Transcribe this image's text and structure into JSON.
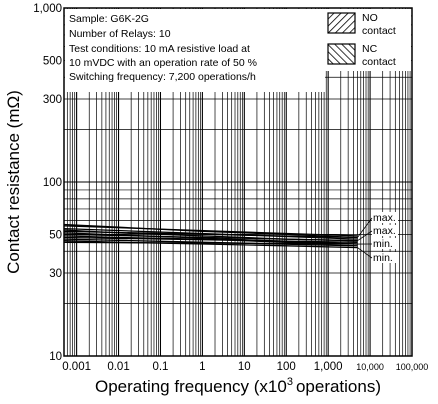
{
  "chart_data": {
    "type": "line",
    "title": "",
    "xlabel": "Operating frequency (x10",
    "xlabel_sup": "3",
    "xlabel_end": "operations)",
    "ylabel": "Contact resistance (mΩ)",
    "xscale": "log",
    "yscale": "log",
    "xlim": [
      0.0005,
      100000
    ],
    "ylim": [
      10,
      1000
    ],
    "grid": true,
    "x_ticks": [
      0.001,
      0.01,
      0.1,
      1,
      10,
      100,
      1000,
      10000,
      100000
    ],
    "x_tick_labels": [
      "0.001",
      "0.01",
      "0.1",
      "1",
      "10",
      "100",
      "1,000",
      "10,000",
      "100,000"
    ],
    "y_ticks": [
      10,
      30,
      50,
      100,
      300,
      500,
      1000
    ],
    "y_tick_labels": [
      "10",
      "30",
      "50",
      "100",
      "300",
      "500",
      "1,000"
    ],
    "info_lines": [
      "Sample: G6K-2G",
      "Number of Relays: 10",
      "Test conditions: 10 mA resistive load at",
      "10 mVDC with an operation rate of 50 %",
      "Switching frequency: 7,200 operations/h"
    ],
    "legend": [
      {
        "name_lines": [
          "NO",
          "contact"
        ],
        "hatch": "diagonal-right"
      },
      {
        "name_lines": [
          "NC",
          "contact"
        ],
        "hatch": "diagonal-left"
      }
    ],
    "legend_position": "top-right",
    "series": [
      {
        "name": "max.",
        "x": [
          0.0005,
          0.01,
          1,
          100,
          5000
        ],
        "values": [
          57,
          55,
          52,
          50,
          48
        ]
      },
      {
        "name": "max.",
        "x": [
          0.0005,
          0.01,
          1,
          100,
          5000
        ],
        "values": [
          53,
          51,
          49,
          47,
          46
        ]
      },
      {
        "name": "min.",
        "x": [
          0.0005,
          0.01,
          1,
          100,
          5000
        ],
        "values": [
          49,
          48,
          47,
          45,
          44
        ]
      },
      {
        "name": "min.",
        "x": [
          0.0005,
          0.01,
          1,
          100,
          5000
        ],
        "values": [
          46,
          45,
          44,
          43,
          42
        ]
      }
    ],
    "band_lines": [
      {
        "x": [
          0.0005,
          5000
        ],
        "values": [
          56,
          49
        ]
      },
      {
        "x": [
          0.0005,
          5000
        ],
        "values": [
          54,
          47
        ]
      },
      {
        "x": [
          0.0005,
          5000
        ],
        "values": [
          52,
          48
        ]
      },
      {
        "x": [
          0.0005,
          5000
        ],
        "values": [
          50,
          46
        ]
      },
      {
        "x": [
          0.0005,
          5000
        ],
        "values": [
          48,
          45
        ]
      },
      {
        "x": [
          0.0005,
          5000
        ],
        "values": [
          47,
          43
        ]
      },
      {
        "x": [
          0.0005,
          5000
        ],
        "values": [
          45,
          44
        ]
      },
      {
        "x": [
          0.0005,
          5000
        ],
        "values": [
          51,
          44
        ]
      }
    ]
  }
}
